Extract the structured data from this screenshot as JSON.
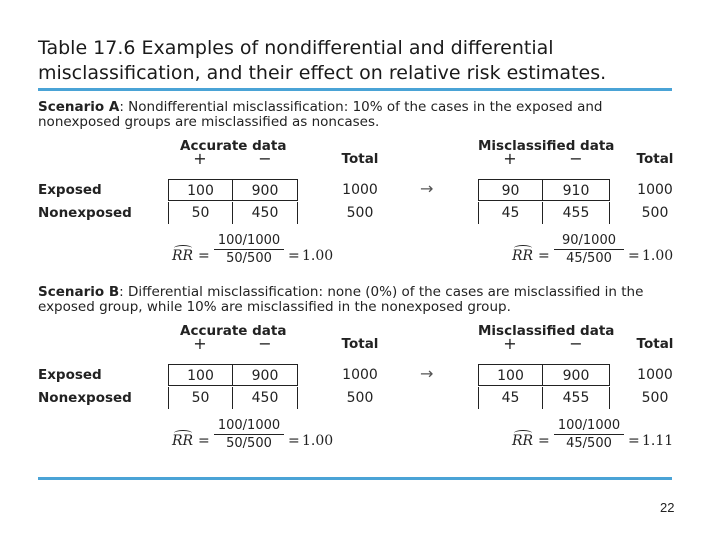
{
  "title": "Table 17.6 Examples of nondifferential and differential misclassification, and their effect on relative risk estimates.",
  "scenarios": [
    {
      "label": "Scenario A",
      "text": ": Nondifferential misclassification: 10% of the cases in the exposed and nonexposed groups are misclassified as noncases.",
      "row_labels": [
        "Exposed",
        "Nonexposed"
      ],
      "arrow": "→",
      "accurate": {
        "heading": "Accurate data",
        "columns": [
          "+",
          "−",
          "Total"
        ],
        "rows": [
          [
            100,
            900,
            1000
          ],
          [
            50,
            450,
            500
          ]
        ],
        "rr": {
          "symbol": "RR",
          "equals": "=",
          "numerator": "100/1000",
          "denominator": "50/500",
          "result": "1.00"
        }
      },
      "misclassified": {
        "heading": "Misclassified data",
        "columns": [
          "+",
          "−",
          "Total"
        ],
        "rows": [
          [
            90,
            910,
            1000
          ],
          [
            45,
            455,
            500
          ]
        ],
        "rr": {
          "symbol": "RR",
          "equals": "=",
          "numerator": "90/1000",
          "denominator": "45/500",
          "result": "1.00"
        }
      }
    },
    {
      "label": "Scenario B",
      "text": ": Differential misclassification: none (0%) of the cases are misclassified in the exposed group, while 10% are misclassified in the nonexposed group.",
      "row_labels": [
        "Exposed",
        "Nonexposed"
      ],
      "arrow": "→",
      "accurate": {
        "heading": "Accurate data",
        "columns": [
          "+",
          "−",
          "Total"
        ],
        "rows": [
          [
            100,
            900,
            1000
          ],
          [
            50,
            450,
            500
          ]
        ],
        "rr": {
          "symbol": "RR",
          "equals": "=",
          "numerator": "100/1000",
          "denominator": "50/500",
          "result": "1.00"
        }
      },
      "misclassified": {
        "heading": "Misclassified data",
        "columns": [
          "+",
          "−",
          "Total"
        ],
        "rows": [
          [
            100,
            900,
            1000
          ],
          [
            45,
            455,
            500
          ]
        ],
        "rr": {
          "symbol": "RR",
          "equals": "=",
          "numerator": "100/1000",
          "denominator": "45/500",
          "result": "1.11"
        }
      }
    }
  ],
  "page_number": "22"
}
